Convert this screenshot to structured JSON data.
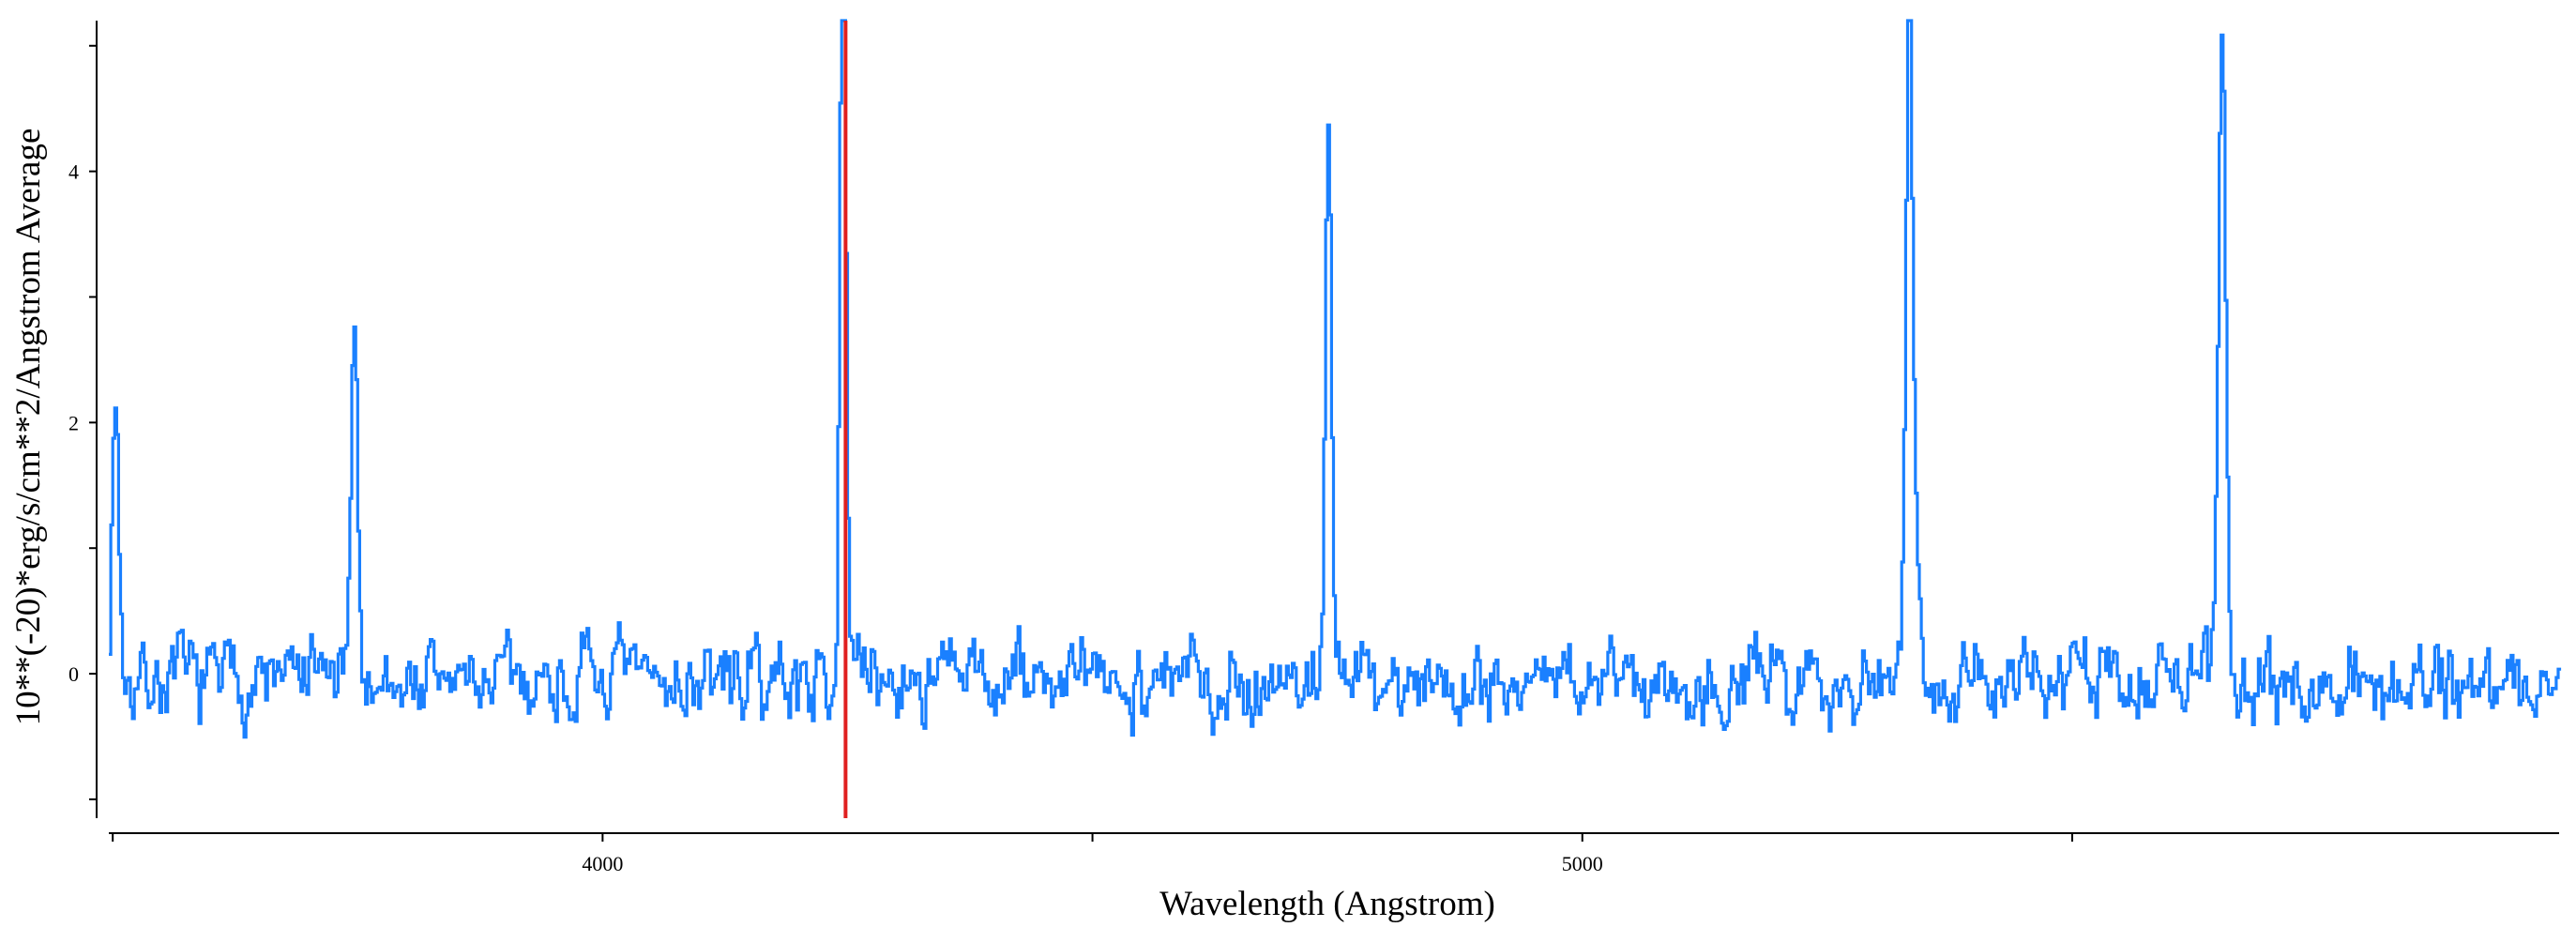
{
  "chart_data": {
    "type": "line",
    "title": "",
    "xlabel": "Wavelength (Angstrom)",
    "ylabel": "10**(-20)*erg/s/cm**2/Angstrom Average",
    "xlim": [
      3496,
      5997
    ],
    "ylim": [
      -1.15,
      5.2
    ],
    "x_ticks": [
      3500,
      4000,
      4500,
      5000,
      5500
    ],
    "x_tick_labels": [
      "",
      "4000",
      "",
      "5000",
      ""
    ],
    "y_ticks": [
      -1,
      0,
      1,
      2,
      3,
      4,
      5
    ],
    "y_tick_labels": [
      "",
      "0",
      "",
      "2",
      "",
      "4",
      ""
    ],
    "grid": false,
    "series": [
      {
        "name": "",
        "color": "#1a80ff",
        "noise_seed": 7,
        "noise_amplitude": 0.34,
        "x_start": 3496,
        "x_end": 5997,
        "x_step": 2,
        "emission_lines": [
          {
            "center": 3502,
            "peak": 2.25,
            "width": 3.5
          },
          {
            "center": 3746,
            "peak": 3.05,
            "width": 3.0
          },
          {
            "center": 4244,
            "peak": 3.3,
            "width": 3.0
          },
          {
            "center": 4245,
            "peak": 3.45,
            "width": 3.0
          },
          {
            "center": 4740,
            "peak": 4.55,
            "width": 3.2
          },
          {
            "center": 5333,
            "peak": 4.58,
            "width": 3.2
          },
          {
            "center": 5335,
            "peak": 1.1,
            "width": 8.0
          },
          {
            "center": 5652,
            "peak": 5.2,
            "width": 3.5
          }
        ]
      }
    ],
    "markers": [
      {
        "type": "vertical-line",
        "x": 4248,
        "color": "#e02020"
      }
    ]
  }
}
